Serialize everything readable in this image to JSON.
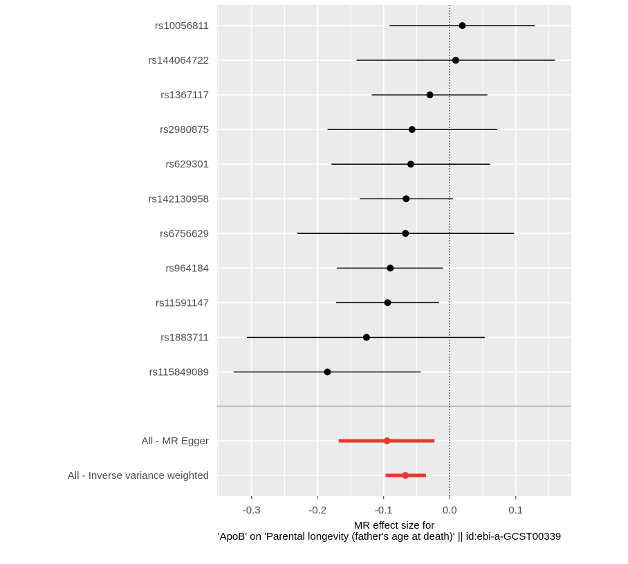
{
  "chart_data": {
    "type": "scatter",
    "subtype": "forest-plot",
    "title": "",
    "xlabel_line1": "MR effect size for",
    "xlabel_line2": "'ApoB' on 'Parental longevity (father's age at death)' || id:ebi-a-GCST00339",
    "ylabel": "",
    "xlim": [
      -0.352,
      0.184
    ],
    "x_ticks": [
      -0.3,
      -0.2,
      -0.1,
      0.0,
      0.1
    ],
    "x_tick_labels": [
      "-0.3",
      "-0.2",
      "-0.1",
      "0.0",
      "0.1"
    ],
    "reference_line": 0,
    "grid": true,
    "legend": "none",
    "colors": {
      "panel_background": "#ebebeb",
      "grid": "#ffffff",
      "snp_points": "#000000",
      "summary_points": "#e8392d",
      "separator": "#bebebe",
      "reference_line": "#333333"
    },
    "snps": [
      {
        "label": "rs10056811",
        "b": 0.019,
        "lo": -0.091,
        "hi": 0.129
      },
      {
        "label": "rs144064722",
        "b": 0.009,
        "lo": -0.141,
        "hi": 0.159
      },
      {
        "label": "rs1367117",
        "b": -0.03,
        "lo": -0.118,
        "hi": 0.057
      },
      {
        "label": "rs2980875",
        "b": -0.057,
        "lo": -0.185,
        "hi": 0.072
      },
      {
        "label": "rs629301",
        "b": -0.059,
        "lo": -0.179,
        "hi": 0.061
      },
      {
        "label": "rs142130958",
        "b": -0.066,
        "lo": -0.136,
        "hi": 0.005
      },
      {
        "label": "rs6756629",
        "b": -0.067,
        "lo": -0.231,
        "hi": 0.097
      },
      {
        "label": "rs964184",
        "b": -0.09,
        "lo": -0.171,
        "hi": -0.01
      },
      {
        "label": "rs11591147",
        "b": -0.094,
        "lo": -0.172,
        "hi": -0.016
      },
      {
        "label": "rs1883711",
        "b": -0.126,
        "lo": -0.307,
        "hi": 0.053
      },
      {
        "label": "rs115849089",
        "b": -0.185,
        "lo": -0.327,
        "hi": -0.044
      }
    ],
    "summary": [
      {
        "label": "All - MR Egger",
        "b": -0.095,
        "lo": -0.168,
        "hi": -0.023
      },
      {
        "label": "All - Inverse variance weighted",
        "b": -0.067,
        "lo": -0.097,
        "hi": -0.036
      }
    ]
  }
}
